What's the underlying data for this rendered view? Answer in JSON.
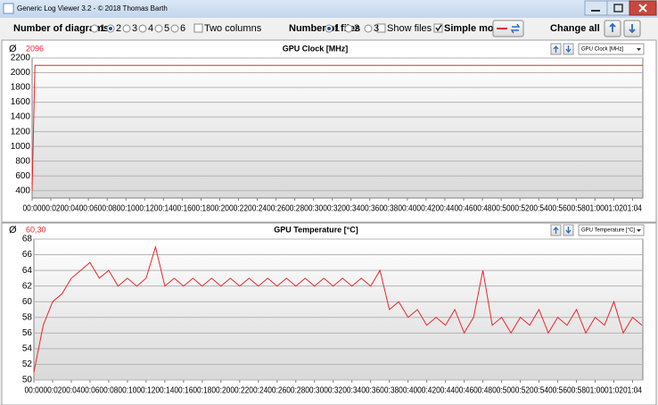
{
  "window": {
    "title": "Generic Log Viewer 3.2 - © 2018 Thomas Barth"
  },
  "toolbar": {
    "diagrams_label": "Number of diagrams",
    "diagram_options": [
      "1",
      "2",
      "3",
      "4",
      "5",
      "6"
    ],
    "two_columns": "Two columns",
    "files_label": "Number of files",
    "file_options": [
      "1",
      "2",
      "3"
    ],
    "show_files": "Show files",
    "simple_mode": "Simple mode",
    "change_all": "Change all"
  },
  "chart_data": [
    {
      "type": "line",
      "title": "GPU Clock [MHz]",
      "symbol": "Ø",
      "average": 2096,
      "selector": "GPU Clock [MHz]",
      "color": "#e8262b",
      "x": [
        0,
        0.3,
        65.1
      ],
      "values": [
        400,
        2100,
        2100
      ],
      "xlim": [
        0,
        65.1
      ],
      "ylim": [
        300,
        2200
      ],
      "yticks": [
        400,
        600,
        800,
        1000,
        1200,
        1400,
        1600,
        1800,
        2000,
        2200
      ],
      "xticks": [
        {
          "value": 0,
          "label": "00:00"
        },
        {
          "value": 2,
          "label": "00:02"
        },
        {
          "value": 4,
          "label": "00:04"
        },
        {
          "value": 6,
          "label": "00:06"
        },
        {
          "value": 8,
          "label": "00:08"
        },
        {
          "value": 10,
          "label": "00:10"
        },
        {
          "value": 12,
          "label": "00:12"
        },
        {
          "value": 14,
          "label": "00:14"
        },
        {
          "value": 16,
          "label": "00:16"
        },
        {
          "value": 18,
          "label": "00:18"
        },
        {
          "value": 20,
          "label": "00:20"
        },
        {
          "value": 22,
          "label": "00:22"
        },
        {
          "value": 24,
          "label": "00:24"
        },
        {
          "value": 26,
          "label": "00:26"
        },
        {
          "value": 28,
          "label": "00:28"
        },
        {
          "value": 30,
          "label": "00:30"
        },
        {
          "value": 32,
          "label": "00:32"
        },
        {
          "value": 34,
          "label": "00:34"
        },
        {
          "value": 36,
          "label": "00:36"
        },
        {
          "value": 38,
          "label": "00:38"
        },
        {
          "value": 40,
          "label": "00:40"
        },
        {
          "value": 42,
          "label": "00:42"
        },
        {
          "value": 44,
          "label": "00:44"
        },
        {
          "value": 46,
          "label": "00:46"
        },
        {
          "value": 48,
          "label": "00:48"
        },
        {
          "value": 50,
          "label": "00:50"
        },
        {
          "value": 52,
          "label": "00:52"
        },
        {
          "value": 54,
          "label": "00:54"
        },
        {
          "value": 56,
          "label": "00:56"
        },
        {
          "value": 58,
          "label": "00:58"
        },
        {
          "value": 60,
          "label": "01:00"
        },
        {
          "value": 62,
          "label": "01:02"
        },
        {
          "value": 64,
          "label": "01:04"
        }
      ],
      "grid": true
    },
    {
      "type": "line",
      "title": "GPU Temperature [°C]",
      "symbol": "Ø",
      "average": 60.3,
      "average_label": "60,30",
      "selector": "GPU Temperature [°C]",
      "color": "#e8262b",
      "x": [
        0,
        1,
        2,
        3,
        4,
        5,
        6,
        7,
        8,
        9,
        10,
        11,
        12,
        13,
        14,
        15,
        16,
        17,
        18,
        19,
        20,
        21,
        22,
        23,
        24,
        25,
        26,
        27,
        28,
        29,
        30,
        31,
        32,
        33,
        34,
        35,
        36,
        37,
        38,
        39,
        40,
        41,
        42,
        43,
        44,
        45,
        46,
        47,
        48,
        49,
        50,
        51,
        52,
        53,
        54,
        55,
        56,
        57,
        58,
        59,
        60,
        61,
        62,
        63,
        64,
        65
      ],
      "values": [
        51,
        57,
        60,
        61,
        63,
        64,
        65,
        63,
        64,
        62,
        63,
        62,
        63,
        67,
        62,
        63,
        62,
        63,
        62,
        63,
        62,
        63,
        62,
        63,
        62,
        63,
        62,
        63,
        62,
        63,
        62,
        63,
        62,
        63,
        62,
        63,
        62,
        64,
        59,
        60,
        58,
        59,
        57,
        58,
        57,
        59,
        56,
        58,
        64,
        57,
        58,
        56,
        58,
        57,
        59,
        56,
        58,
        57,
        59,
        56,
        58,
        57,
        60,
        56,
        58,
        57
      ],
      "xlim": [
        0,
        65.1
      ],
      "ylim": [
        50,
        68
      ],
      "yticks": [
        50,
        52,
        54,
        56,
        58,
        60,
        62,
        64,
        66,
        68
      ],
      "xticks": [
        {
          "value": 0,
          "label": "00:00"
        },
        {
          "value": 2,
          "label": "00:02"
        },
        {
          "value": 4,
          "label": "00:04"
        },
        {
          "value": 6,
          "label": "00:06"
        },
        {
          "value": 8,
          "label": "00:08"
        },
        {
          "value": 10,
          "label": "00:10"
        },
        {
          "value": 12,
          "label": "00:12"
        },
        {
          "value": 14,
          "label": "00:14"
        },
        {
          "value": 16,
          "label": "00:16"
        },
        {
          "value": 18,
          "label": "00:18"
        },
        {
          "value": 20,
          "label": "00:20"
        },
        {
          "value": 22,
          "label": "00:22"
        },
        {
          "value": 24,
          "label": "00:24"
        },
        {
          "value": 26,
          "label": "00:26"
        },
        {
          "value": 28,
          "label": "00:28"
        },
        {
          "value": 30,
          "label": "00:30"
        },
        {
          "value": 32,
          "label": "00:32"
        },
        {
          "value": 34,
          "label": "00:34"
        },
        {
          "value": 36,
          "label": "00:36"
        },
        {
          "value": 38,
          "label": "00:38"
        },
        {
          "value": 40,
          "label": "00:40"
        },
        {
          "value": 42,
          "label": "00:42"
        },
        {
          "value": 44,
          "label": "00:44"
        },
        {
          "value": 46,
          "label": "00:46"
        },
        {
          "value": 48,
          "label": "00:48"
        },
        {
          "value": 50,
          "label": "00:50"
        },
        {
          "value": 52,
          "label": "00:52"
        },
        {
          "value": 54,
          "label": "00:54"
        },
        {
          "value": 56,
          "label": "00:56"
        },
        {
          "value": 58,
          "label": "00:58"
        },
        {
          "value": 60,
          "label": "01:00"
        },
        {
          "value": 62,
          "label": "01:02"
        },
        {
          "value": 64,
          "label": "01:04"
        }
      ],
      "grid": true
    }
  ]
}
